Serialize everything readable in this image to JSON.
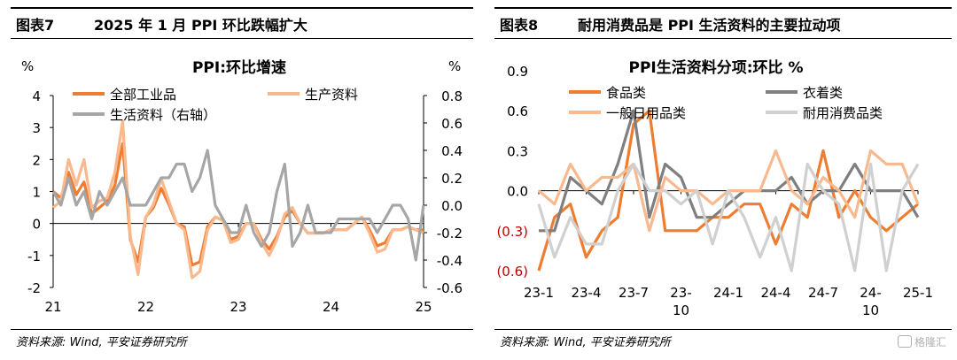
{
  "left": {
    "figure_no": "图表7",
    "heading": "2025 年 1 月 PPI 环比跌幅扩大",
    "source": "资料来源: Wind, 平安证券研究所",
    "chart_data": {
      "type": "line",
      "title": "PPI:环比增速",
      "y_left_unit": "%",
      "y_right_unit": "%",
      "y_left_range": [
        -2,
        4
      ],
      "y_right_range": [
        -0.6,
        0.8
      ],
      "y_left_ticks": [
        "4",
        "3",
        "2",
        "1",
        "0",
        "-1",
        "-2"
      ],
      "y_right_ticks": [
        "0.8",
        "0.6",
        "0.4",
        "0.2",
        "0.0",
        "-0.2",
        "-0.4",
        "-0.6"
      ],
      "x_ticks": [
        "21",
        "22",
        "23",
        "24",
        "25"
      ],
      "x_tick_index": [
        0,
        12,
        24,
        36,
        48
      ],
      "series": [
        {
          "name": "全部工业品",
          "axis": "left",
          "color": "#ee7d31",
          "values": [
            1.0,
            0.8,
            1.6,
            0.9,
            1.3,
            0.3,
            0.5,
            0.7,
            1.2,
            2.5,
            -0.5,
            -1.2,
            0.2,
            0.5,
            1.1,
            0.6,
            0.0,
            -0.1,
            -1.3,
            -1.2,
            -0.1,
            0.2,
            0.1,
            -0.5,
            -0.4,
            0.0,
            0.0,
            -0.5,
            -0.8,
            -0.4,
            0.2,
            0.4,
            0.0,
            -0.3,
            -0.3,
            -0.3,
            -0.2,
            -0.2,
            -0.2,
            0.0,
            0.2,
            -0.2,
            -0.7,
            -0.6,
            -0.2,
            -0.2,
            -0.1,
            -0.2,
            -0.2
          ]
        },
        {
          "name": "生产资料",
          "axis": "left",
          "color": "#f8b98e",
          "values": [
            0.5,
            0.7,
            2.0,
            1.2,
            2.0,
            0.5,
            0.7,
            0.8,
            1.6,
            3.2,
            -0.4,
            -1.6,
            0.2,
            0.6,
            1.4,
            0.7,
            0.0,
            -0.2,
            -1.7,
            -1.5,
            -0.2,
            0.2,
            0.1,
            -0.6,
            -0.5,
            0.0,
            0.0,
            -0.6,
            -1.0,
            -0.5,
            0.3,
            0.5,
            0.0,
            -0.3,
            -0.3,
            -0.3,
            -0.2,
            -0.2,
            -0.2,
            0.0,
            0.2,
            -0.3,
            -0.9,
            -0.8,
            -0.2,
            -0.2,
            -0.1,
            -0.2,
            -0.3
          ]
        },
        {
          "name": "生活资料（右轴）",
          "axis": "right",
          "color": "#a6a6a6",
          "values": [
            0.1,
            0.0,
            0.2,
            0.0,
            0.1,
            -0.1,
            0.1,
            0.0,
            0.1,
            0.2,
            0.0,
            0.0,
            0.0,
            0.1,
            0.2,
            0.2,
            0.3,
            0.3,
            0.1,
            0.2,
            0.4,
            0.0,
            -0.1,
            -0.2,
            -0.2,
            0.0,
            -0.2,
            -0.3,
            -0.2,
            0.1,
            0.3,
            -0.3,
            -0.2,
            0.0,
            -0.2,
            -0.2,
            -0.2,
            -0.1,
            -0.1,
            -0.1,
            -0.1,
            -0.1,
            -0.2,
            -0.1,
            0.0,
            0.0,
            -0.1,
            -0.4,
            0.0
          ]
        }
      ]
    }
  },
  "right": {
    "figure_no": "图表8",
    "heading": "耐用消费品是 PPI 生活资料的主要拉动项",
    "source": "资料来源: Wind, 平安证券研究所",
    "watermark": "格隆汇",
    "chart_data": {
      "type": "line",
      "title": "PPI生活资料分项:环比 %",
      "y_range": [
        -0.6,
        0.9
      ],
      "y_ticks": [
        "0.9",
        "0.6",
        "0.3",
        "0.0",
        "(0.3)",
        "(0.6)"
      ],
      "x_ticks": [
        "23-1",
        "23-4",
        "23-7",
        "23-\n10",
        "24-1",
        "24-4",
        "24-7",
        "24-\n10",
        "25-1"
      ],
      "x_tick_index": [
        0,
        3,
        6,
        9,
        12,
        15,
        18,
        21,
        24
      ],
      "series": [
        {
          "name": "食品类",
          "color": "#ee7d31",
          "values": [
            -0.6,
            -0.2,
            -0.1,
            -0.5,
            -0.3,
            -0.2,
            0.5,
            0.6,
            -0.3,
            -0.3,
            -0.3,
            -0.2,
            -0.2,
            -0.1,
            -0.1,
            -0.4,
            -0.1,
            -0.2,
            0.3,
            -0.2,
            0.0,
            -0.2,
            -0.3,
            -0.2,
            -0.1
          ]
        },
        {
          "name": "衣着类",
          "color": "#7f7f7f",
          "values": [
            -0.3,
            -0.3,
            0.1,
            0.0,
            -0.1,
            0.2,
            0.6,
            -0.2,
            0.2,
            0.1,
            -0.2,
            -0.2,
            -0.1,
            0.0,
            0.0,
            0.0,
            0.1,
            -0.1,
            0.0,
            0.0,
            0.2,
            0.0,
            0.0,
            0.0,
            -0.2
          ]
        },
        {
          "name": "一般日用品类",
          "color": "#f8b98e",
          "values": [
            0.0,
            -0.1,
            0.2,
            0.0,
            0.1,
            0.1,
            0.2,
            -0.3,
            0.1,
            0.0,
            0.0,
            -0.1,
            0.0,
            0.0,
            0.0,
            0.3,
            0.0,
            -0.1,
            0.1,
            0.0,
            -0.2,
            0.3,
            0.2,
            0.2,
            -0.1
          ]
        },
        {
          "name": "耐用消费品类",
          "color": "#d0d0d0",
          "values": [
            -0.1,
            -0.5,
            -0.2,
            -0.4,
            -0.4,
            0.0,
            0.2,
            0.0,
            0.0,
            -0.1,
            0.0,
            -0.4,
            0.0,
            -0.2,
            -0.5,
            -0.2,
            -0.6,
            0.2,
            0.0,
            -0.1,
            -0.6,
            0.2,
            -0.6,
            0.0,
            0.2
          ]
        }
      ]
    }
  }
}
